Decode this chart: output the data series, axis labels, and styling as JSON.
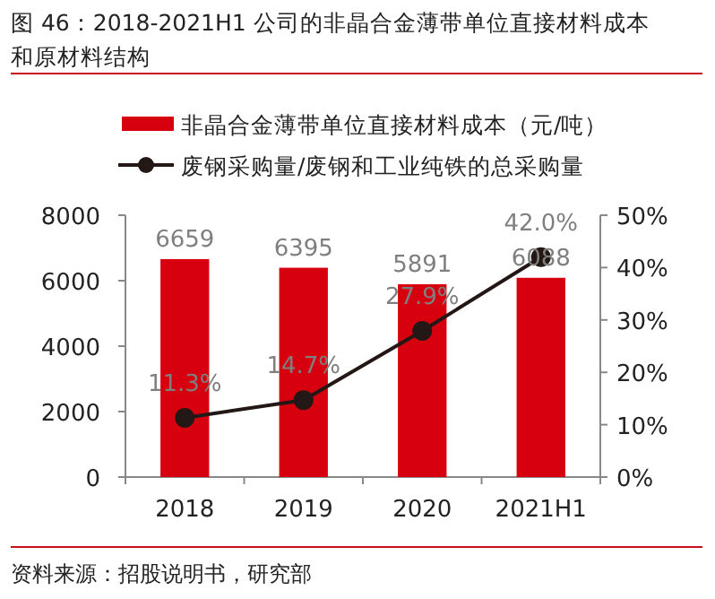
{
  "chart_data": {
    "type": "bar",
    "title": "图 46：2018-2021H1 公司的非晶合金薄带单位直接材料成本和原材料结构",
    "categories": [
      "2018",
      "2019",
      "2020",
      "2021H1"
    ],
    "series": [
      {
        "name": "非晶合金薄带单位直接材料成本（元/吨）",
        "color": "#d7000f",
        "values": [
          6659,
          6395,
          5891,
          6088
        ],
        "value_labels": [
          "6659",
          "6395",
          "5891",
          "6088"
        ]
      },
      {
        "name": "废钢采购量/废钢和工业纯铁的总采购量",
        "type": "line",
        "axis": "y2",
        "color": "#231815",
        "marker": "circle",
        "values": [
          11.3,
          14.7,
          27.9,
          42.0
        ],
        "value_labels": [
          "11.3%",
          "14.7%",
          "27.9%",
          "42.0%"
        ]
      }
    ],
    "ylim": [
      0,
      8000
    ],
    "yticks": [
      0,
      2000,
      4000,
      6000,
      8000
    ],
    "y2lim": [
      0,
      50
    ],
    "y2ticks": [
      {
        "value": 0,
        "label": "0%"
      },
      {
        "value": 10,
        "label": "10%"
      },
      {
        "value": 20,
        "label": "20%"
      },
      {
        "value": 30,
        "label": "30%"
      },
      {
        "value": 40,
        "label": "40%"
      },
      {
        "value": 50,
        "label": "50%"
      }
    ],
    "legend": "top",
    "annotations": [
      "资料来源：招股说明书，研究部"
    ]
  }
}
